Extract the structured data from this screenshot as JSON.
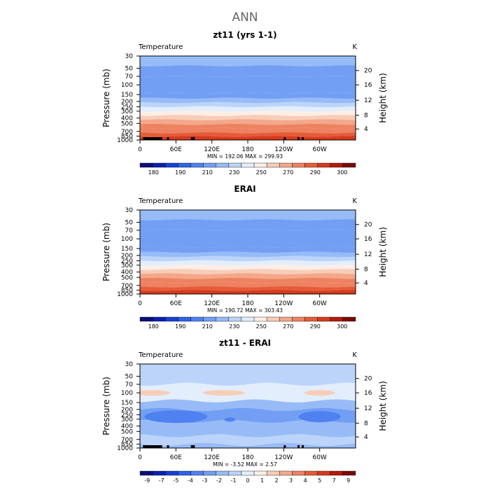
{
  "page_title": "ANN",
  "colors": {
    "temp_scale": [
      "#0a0f7a",
      "#0a1fb0",
      "#1740d8",
      "#2e62ea",
      "#4f82f0",
      "#729ff4",
      "#97bbf7",
      "#bcd4fa",
      "#e3eefc",
      "#fdeee6",
      "#f8cdb7",
      "#f3a88a",
      "#ee8260",
      "#e65c38",
      "#d8391b",
      "#b41a08",
      "#7a0a02"
    ],
    "diff_scale": [
      "#0a0f7a",
      "#0a1fb0",
      "#1740d8",
      "#2e62ea",
      "#4f82f0",
      "#729ff4",
      "#97bbf7",
      "#bcd4fa",
      "#e3eefc",
      "#fdeee6",
      "#f8cdb7",
      "#f3a88a",
      "#ee8260",
      "#e65c38",
      "#d8391b",
      "#b41a08",
      "#7a0a02"
    ]
  },
  "chart_data": [
    {
      "type": "heatmap",
      "title": "zt11 (yrs 1-1)",
      "left_label": "Temperature",
      "right_label": "K",
      "ylabel": "Pressure (mb)",
      "y2label": "Height (km)",
      "x_ticks": [
        "0",
        "60E",
        "120E",
        "180",
        "120W",
        "60W"
      ],
      "x_range": [
        0,
        360
      ],
      "y_ticks": [
        "30",
        "50",
        "70",
        "100",
        "150",
        "200",
        "250",
        "300",
        "400",
        "500",
        "700",
        "850",
        "1000"
      ],
      "y2_ticks": [
        "20",
        "16",
        "12",
        "8",
        "4"
      ],
      "ylim": [
        1000,
        30
      ],
      "minmax": "MIN = 192.06   MAX = 299.93",
      "layers": [
        {
          "p_top": 30,
          "p_bot": 45,
          "value": 215
        },
        {
          "p_top": 45,
          "p_bot": 70,
          "value": 208
        },
        {
          "p_top": 70,
          "p_bot": 140,
          "value": 200
        },
        {
          "p_top": 140,
          "p_bot": 175,
          "value": 208
        },
        {
          "p_top": 175,
          "p_bot": 210,
          "value": 215
        },
        {
          "p_top": 210,
          "p_bot": 250,
          "value": 222
        },
        {
          "p_top": 250,
          "p_bot": 300,
          "value": 232
        },
        {
          "p_top": 300,
          "p_bot": 360,
          "value": 245
        },
        {
          "p_top": 360,
          "p_bot": 430,
          "value": 255
        },
        {
          "p_top": 430,
          "p_bot": 520,
          "value": 262
        },
        {
          "p_top": 520,
          "p_bot": 620,
          "value": 270
        },
        {
          "p_top": 620,
          "p_bot": 740,
          "value": 278
        },
        {
          "p_top": 740,
          "p_bot": 860,
          "value": 284
        },
        {
          "p_top": 860,
          "p_bot": 1000,
          "value": 290
        }
      ],
      "colorbar": {
        "labels": [
          "180",
          "190",
          "210",
          "230",
          "250",
          "270",
          "290",
          "300"
        ]
      },
      "topography": [
        [
          5,
          37
        ],
        [
          28,
          33
        ],
        [
          45,
          37
        ],
        [
          85,
          30
        ],
        [
          88,
          34
        ],
        [
          240,
          30
        ],
        [
          263,
          33
        ],
        [
          270,
          37
        ]
      ]
    },
    {
      "type": "heatmap",
      "title": "ERAI",
      "left_label": "Temperature",
      "right_label": "K",
      "ylabel": "Pressure (mb)",
      "y2label": "Height (km)",
      "x_ticks": [
        "0",
        "60E",
        "120E",
        "180",
        "120W",
        "60W"
      ],
      "x_range": [
        0,
        360
      ],
      "y_ticks": [
        "30",
        "50",
        "70",
        "100",
        "150",
        "200",
        "250",
        "300",
        "400",
        "500",
        "700",
        "850",
        "1000"
      ],
      "y2_ticks": [
        "20",
        "16",
        "12",
        "8",
        "4"
      ],
      "ylim": [
        1000,
        30
      ],
      "minmax": "MIN = 190.72   MAX = 303.43",
      "layers": [
        {
          "p_top": 30,
          "p_bot": 45,
          "value": 215
        },
        {
          "p_top": 45,
          "p_bot": 70,
          "value": 208
        },
        {
          "p_top": 70,
          "p_bot": 140,
          "value": 200
        },
        {
          "p_top": 140,
          "p_bot": 175,
          "value": 208
        },
        {
          "p_top": 175,
          "p_bot": 210,
          "value": 215
        },
        {
          "p_top": 210,
          "p_bot": 250,
          "value": 222
        },
        {
          "p_top": 250,
          "p_bot": 300,
          "value": 232
        },
        {
          "p_top": 300,
          "p_bot": 360,
          "value": 245
        },
        {
          "p_top": 360,
          "p_bot": 430,
          "value": 255
        },
        {
          "p_top": 430,
          "p_bot": 520,
          "value": 262
        },
        {
          "p_top": 520,
          "p_bot": 620,
          "value": 270
        },
        {
          "p_top": 620,
          "p_bot": 740,
          "value": 278
        },
        {
          "p_top": 740,
          "p_bot": 860,
          "value": 284
        },
        {
          "p_top": 860,
          "p_bot": 1000,
          "value": 292
        }
      ],
      "colorbar": {
        "labels": [
          "180",
          "190",
          "210",
          "230",
          "250",
          "270",
          "290",
          "300"
        ]
      },
      "topography": []
    },
    {
      "type": "heatmap",
      "title": "zt11 - ERAI",
      "left_label": "Temperature",
      "right_label": "K",
      "ylabel": "Pressure (mb)",
      "y2label": "Height (km)",
      "x_ticks": [
        "0",
        "60E",
        "120E",
        "180",
        "120W",
        "60W"
      ],
      "x_range": [
        0,
        360
      ],
      "y_ticks": [
        "30",
        "50",
        "70",
        "100",
        "150",
        "200",
        "250",
        "300",
        "400",
        "500",
        "700",
        "850",
        "1000"
      ],
      "y2_ticks": [
        "20",
        "16",
        "12",
        "8",
        "4"
      ],
      "ylim": [
        1000,
        30
      ],
      "minmax": "MIN =   -3.52   MAX =     2.57",
      "layers": [
        {
          "p_top": 30,
          "p_bot": 70,
          "value": -0.5
        },
        {
          "p_top": 70,
          "p_bot": 140,
          "value": 0.5
        },
        {
          "p_top": 140,
          "p_bot": 200,
          "value": -1.5
        },
        {
          "p_top": 200,
          "p_bot": 330,
          "value": -2.5
        },
        {
          "p_top": 330,
          "p_bot": 600,
          "value": -1.5
        },
        {
          "p_top": 600,
          "p_bot": 860,
          "value": -0.5
        },
        {
          "p_top": 860,
          "p_bot": 1000,
          "value": -1.5
        }
      ],
      "colorbar": {
        "labels": [
          "-9",
          "-7",
          "-5",
          "-4",
          "-3",
          "-2",
          "-1",
          "0",
          "1",
          "2",
          "3",
          "4",
          "5",
          "7",
          "9"
        ]
      },
      "topography": [
        [
          5,
          37
        ],
        [
          28,
          33
        ],
        [
          45,
          37
        ],
        [
          85,
          30
        ],
        [
          88,
          34
        ],
        [
          240,
          30
        ],
        [
          263,
          33
        ],
        [
          270,
          37
        ]
      ]
    }
  ]
}
